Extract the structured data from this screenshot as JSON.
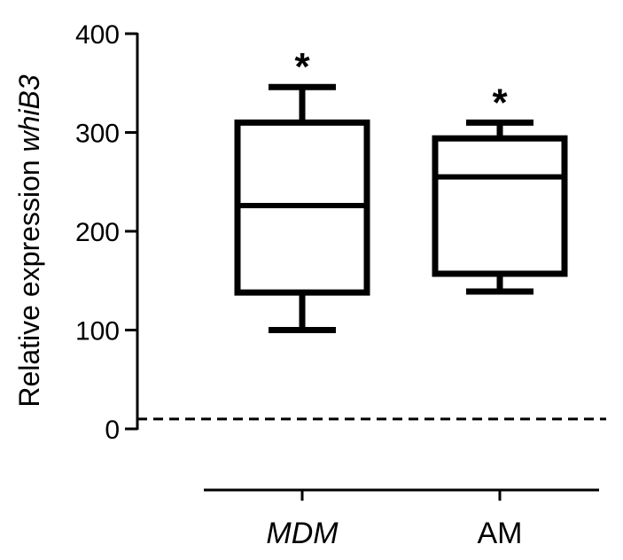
{
  "chart_data": {
    "type": "box",
    "ylabel_prefix": "Relative expression ",
    "ylabel_gene": "whiB3",
    "xlabel": "",
    "ylim": [
      0,
      400
    ],
    "yticks": [
      0,
      100,
      200,
      300,
      400
    ],
    "reference_line": {
      "y": 10,
      "style": "dashed"
    },
    "categories": [
      {
        "label": "MDM",
        "italic": true,
        "significance": "*",
        "min": 100,
        "q1": 138,
        "median": 226,
        "q3": 310,
        "max": 346
      },
      {
        "label": "AM",
        "italic": false,
        "significance": "*",
        "min": 139,
        "q1": 157,
        "median": 255,
        "q3": 294,
        "max": 310
      }
    ],
    "color": "#000000"
  }
}
